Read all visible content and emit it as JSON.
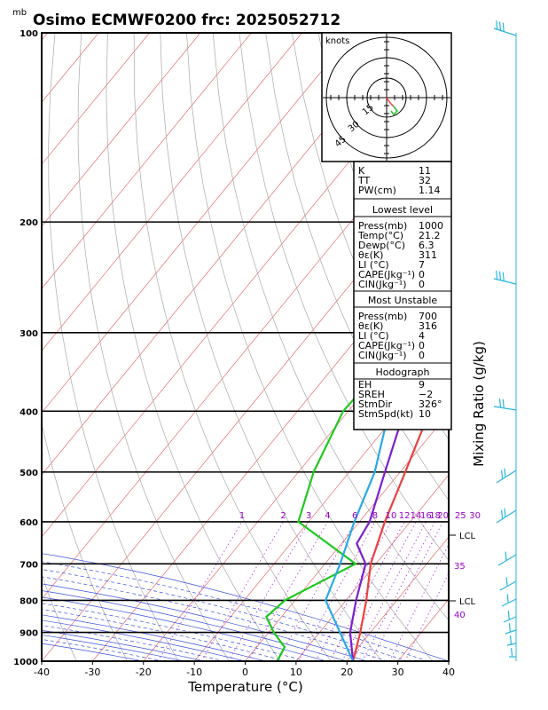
{
  "header": {
    "unit": "mb",
    "title": "Osimo ECMWF0200 frc: 2025052712"
  },
  "chart_data": {
    "type": "line",
    "xlabel": "Temperature (°C)",
    "ylabel": "Mixing Ratio (g/kg)",
    "xlim": [
      -40,
      40
    ],
    "ylim": [
      1000,
      100
    ],
    "x_ticks": [
      "-40",
      "-30",
      "-20",
      "-10",
      "0",
      "10",
      "20",
      "30",
      "40"
    ],
    "pressure_ticks": [
      "100",
      "200",
      "300",
      "400",
      "500",
      "600",
      "700",
      "800",
      "900",
      "1000"
    ],
    "mixing_ratio_labels": [
      "1",
      "2",
      "3",
      "4",
      "6",
      "8",
      "10",
      "12",
      "14",
      "16",
      "18",
      "20",
      "25",
      "30"
    ],
    "theta_e_labels": [
      "35",
      "40"
    ],
    "lcl_labels": [
      "LCL",
      "LCL"
    ],
    "series": [
      {
        "key": "temperature",
        "color": "#e8413f",
        "points": [
          [
            21.2,
            1000
          ],
          [
            18,
            900
          ],
          [
            14,
            800
          ],
          [
            9,
            700
          ],
          [
            5,
            600
          ],
          [
            1,
            500
          ],
          [
            -4,
            400
          ],
          [
            -10,
            300
          ],
          [
            -16,
            250
          ],
          [
            -12,
            200
          ],
          [
            -3,
            150
          ],
          [
            8,
            100
          ]
        ]
      },
      {
        "key": "dewpoint",
        "color": "#1ec81e",
        "points": [
          [
            6.3,
            1000
          ],
          [
            5.5,
            950
          ],
          [
            1,
            900
          ],
          [
            -3,
            850
          ],
          [
            -2,
            800
          ],
          [
            6,
            700
          ],
          [
            -12,
            600
          ],
          [
            -17,
            500
          ],
          [
            -21,
            400
          ],
          [
            -20,
            300
          ],
          [
            -18,
            200
          ],
          [
            -13,
            100
          ]
        ]
      },
      {
        "key": "parcel",
        "color": "#7b1fd0",
        "points": [
          [
            21.2,
            1000
          ],
          [
            16,
            900
          ],
          [
            12,
            800
          ],
          [
            8,
            700
          ],
          [
            3,
            650
          ],
          [
            2,
            600
          ],
          [
            -3,
            500
          ],
          [
            -9,
            400
          ],
          [
            -19,
            300
          ],
          [
            -30,
            200
          ],
          [
            -36,
            120
          ],
          [
            -37,
            110
          ]
        ]
      },
      {
        "key": "env_light",
        "color": "#27a9e6",
        "points": [
          [
            21.2,
            1000
          ],
          [
            14,
            900
          ],
          [
            6,
            800
          ],
          [
            3,
            700
          ],
          [
            -1,
            600
          ],
          [
            -5,
            500
          ],
          [
            -12,
            400
          ],
          [
            -22,
            300
          ],
          [
            -35,
            200
          ],
          [
            -42,
            110
          ],
          [
            -43,
            100
          ]
        ]
      }
    ]
  },
  "hodograph": {
    "unit_label": "knots",
    "ring_labels": [
      "15",
      "30",
      "45"
    ]
  },
  "indices": {
    "block1": [
      {
        "label": "K",
        "value": "11"
      },
      {
        "label": "TT",
        "value": "32"
      },
      {
        "label": "PW(cm)",
        "value": "1.14"
      }
    ],
    "lowest_level": {
      "title": "Lowest level",
      "rows": [
        {
          "label": "Press(mb)",
          "value": "1000"
        },
        {
          "label": "Temp(°C)",
          "value": "21.2"
        },
        {
          "label": "Dewp(°C)",
          "value": "6.3"
        },
        {
          "label": "θε(K)",
          "value": "311"
        },
        {
          "label": "LI (°C)",
          "value": "7"
        },
        {
          "label": "CAPE(Jkg⁻¹)",
          "value": "0"
        },
        {
          "label": "CIN(Jkg⁻¹)",
          "value": "0"
        }
      ]
    },
    "most_unstable": {
      "title": "Most Unstable",
      "rows": [
        {
          "label": "Press(mb)",
          "value": "700"
        },
        {
          "label": "θε(K)",
          "value": "316"
        },
        {
          "label": "LI (°C)",
          "value": "4"
        },
        {
          "label": "CAPE(Jkg⁻¹)",
          "value": "0"
        },
        {
          "label": "CIN(Jkg⁻¹)",
          "value": "0"
        }
      ]
    },
    "hodograph_box": {
      "title": "Hodograph",
      "rows": [
        {
          "label": "EH",
          "value": "9"
        },
        {
          "label": "SREH",
          "value": "−2"
        },
        {
          "label": "StmDir",
          "value": "326°"
        },
        {
          "label": "StmSpd(kt)",
          "value": "10"
        }
      ]
    }
  }
}
